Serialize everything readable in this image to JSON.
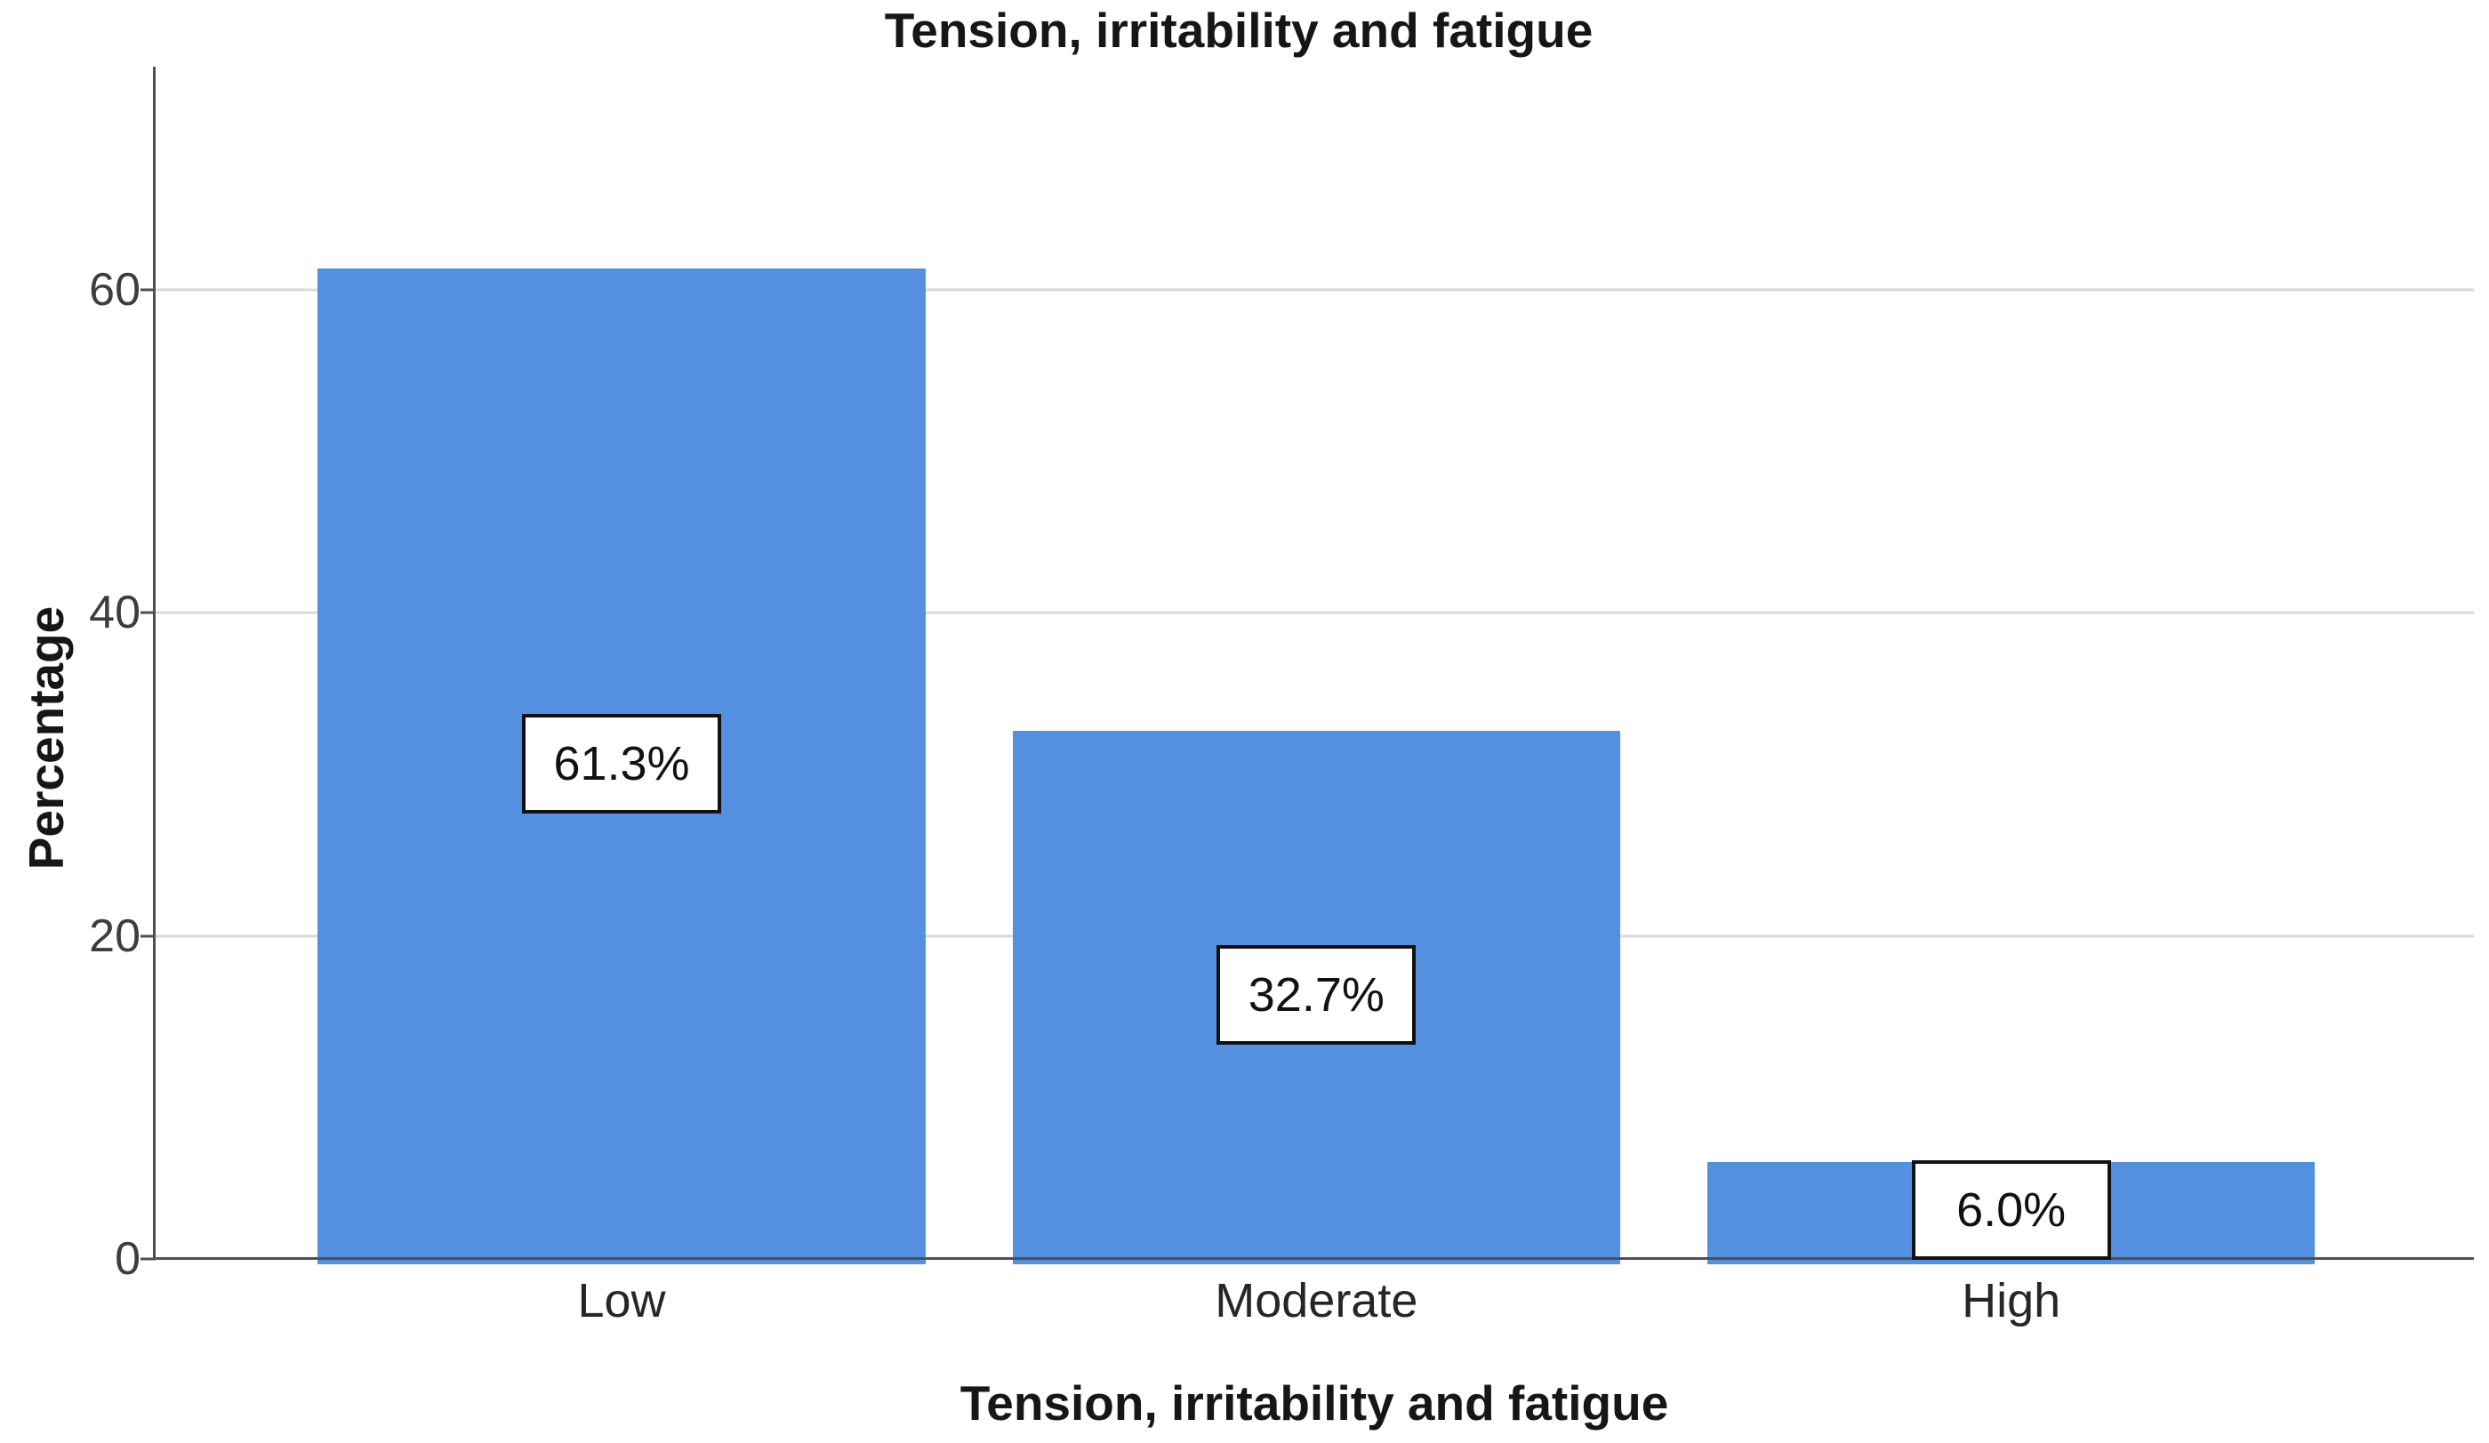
{
  "chart_data": {
    "type": "bar",
    "title": "Tension, irritability and fatigue",
    "xlabel": "Tension, irritability and fatigue",
    "ylabel": "Percentage",
    "categories": [
      "Low",
      "Moderate",
      "High"
    ],
    "values": [
      61.3,
      32.7,
      6.0
    ],
    "value_labels": [
      "61.3%",
      "32.7%",
      "6.0%"
    ],
    "yticks": [
      0,
      20,
      40,
      60
    ],
    "ylim": [
      0,
      73.8
    ],
    "grid": "horizontal-only",
    "legend": "none",
    "colors": {
      "bar": "#5590E0",
      "gridline": "#d9d9d9",
      "axis": "#4f4f4f",
      "title_text": "#161616",
      "tick_text": "#3d3d3d",
      "category_text": "#262626",
      "value_label_text": "#111111",
      "value_label_background": "#ffffff",
      "value_label_border": "#111111",
      "background": "#ffffff"
    }
  }
}
